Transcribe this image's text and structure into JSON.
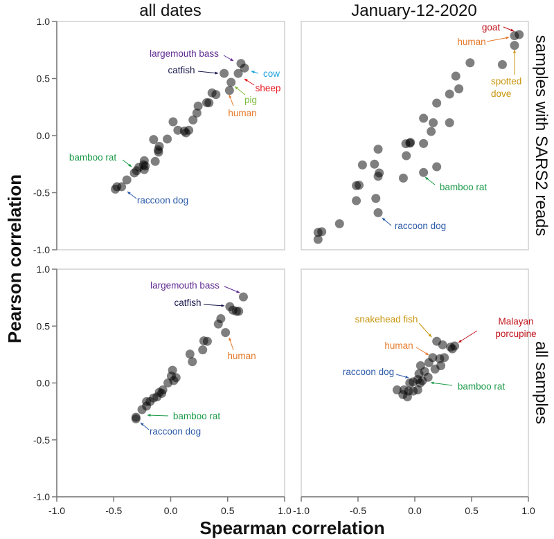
{
  "chart_data": [
    {
      "type": "scatter",
      "panel": "top-left",
      "title": "all dates",
      "row_label": "samples with SARS2 reads",
      "xlim": [
        -1,
        1
      ],
      "ylim": [
        -1,
        1
      ],
      "points": [
        [
          0.617,
          0.632
        ],
        [
          0.648,
          0.592
        ],
        [
          0.469,
          0.545
        ],
        [
          0.593,
          0.545
        ],
        [
          0.53,
          0.467
        ],
        [
          0.516,
          0.396
        ],
        [
          0.363,
          0.374
        ],
        [
          0.397,
          0.36
        ],
        [
          0.316,
          0.289
        ],
        [
          0.336,
          0.287
        ],
        [
          0.241,
          0.259
        ],
        [
          0.23,
          0.198
        ],
        [
          0.196,
          0.137
        ],
        [
          0.021,
          0.121
        ],
        [
          0.063,
          0.047
        ],
        [
          0.12,
          0.04
        ],
        [
          0.134,
          0.024
        ],
        [
          0.159,
          0.047
        ],
        [
          -0.03,
          -0.03
        ],
        [
          -0.15,
          -0.034
        ],
        [
          -0.1,
          -0.094
        ],
        [
          -0.11,
          -0.125
        ],
        [
          -0.106,
          -0.145
        ],
        [
          -0.136,
          -0.226
        ],
        [
          -0.232,
          -0.22
        ],
        [
          -0.238,
          -0.256
        ],
        [
          -0.224,
          -0.266
        ],
        [
          -0.232,
          -0.297
        ],
        [
          -0.279,
          -0.277
        ],
        [
          -0.299,
          -0.307
        ],
        [
          -0.319,
          -0.327
        ],
        [
          -0.385,
          -0.388
        ],
        [
          -0.431,
          -0.448
        ],
        [
          -0.472,
          -0.448
        ],
        [
          -0.486,
          -0.469
        ]
      ],
      "annotations": [
        {
          "text": "largemouth bass",
          "color": "#5e2a91"
        },
        {
          "text": "catfish",
          "color": "#17174a"
        },
        {
          "text": "cow",
          "color": "#1ea3dc"
        },
        {
          "text": "sheep",
          "color": "#e4141b"
        },
        {
          "text": "pig",
          "color": "#7dbb3c"
        },
        {
          "text": "human",
          "color": "#e57a2b"
        },
        {
          "text": "bamboo rat",
          "color": "#1a9a48"
        },
        {
          "text": "raccoon dog",
          "color": "#2b5aa8"
        }
      ]
    },
    {
      "type": "scatter",
      "panel": "top-right",
      "title": "January-12-2020",
      "row_label": "samples with SARS2 reads",
      "xlim": [
        -1,
        1
      ],
      "ylim": [
        -1,
        1
      ],
      "points": [
        [
          0.878,
          0.875
        ],
        [
          0.919,
          0.885
        ],
        [
          0.878,
          0.79
        ],
        [
          0.487,
          0.638
        ],
        [
          0.771,
          0.622
        ],
        [
          0.361,
          0.521
        ],
        [
          0.388,
          0.41
        ],
        [
          0.306,
          0.364
        ],
        [
          0.193,
          0.285
        ],
        [
          0.077,
          0.152
        ],
        [
          0.162,
          0.113
        ],
        [
          0.306,
          0.113
        ],
        [
          0.144,
          0.036
        ],
        [
          -0.079,
          -0.071
        ],
        [
          -0.038,
          -0.06
        ],
        [
          -0.044,
          -0.066
        ],
        [
          0.077,
          -0.069
        ],
        [
          -0.323,
          -0.119
        ],
        [
          -0.075,
          -0.176
        ],
        [
          -0.461,
          -0.257
        ],
        [
          -0.355,
          -0.25
        ],
        [
          -0.313,
          -0.327
        ],
        [
          -0.323,
          -0.356
        ],
        [
          -0.101,
          -0.372
        ],
        [
          0.077,
          -0.323
        ],
        [
          0.193,
          -0.273
        ],
        [
          -0.515,
          -0.438
        ],
        [
          -0.491,
          -0.434
        ],
        [
          -0.515,
          -0.57
        ],
        [
          -0.343,
          -0.55
        ],
        [
          -0.323,
          -0.675
        ],
        [
          -0.663,
          -0.772
        ],
        [
          -0.852,
          -0.848
        ],
        [
          -0.819,
          -0.842
        ],
        [
          -0.852,
          -0.909
        ]
      ],
      "annotations": [
        {
          "text": "goat",
          "color": "#c0141b"
        },
        {
          "text": "human",
          "color": "#e57a2b"
        },
        {
          "text": "spotted",
          "color": "#c8950c"
        },
        {
          "text": "dove",
          "color": "#c8950c"
        },
        {
          "text": "bamboo rat",
          "color": "#1a9a48"
        },
        {
          "text": "raccoon dog",
          "color": "#2b5aa8"
        }
      ]
    },
    {
      "type": "scatter",
      "panel": "bottom-left",
      "row_label": "all samples",
      "xlim": [
        -1,
        1
      ],
      "ylim": [
        -1,
        1
      ],
      "points": [
        [
          0.638,
          0.756
        ],
        [
          0.519,
          0.671
        ],
        [
          0.546,
          0.64
        ],
        [
          0.577,
          0.63
        ],
        [
          0.597,
          0.63
        ],
        [
          0.44,
          0.565
        ],
        [
          0.418,
          0.518
        ],
        [
          0.481,
          0.443
        ],
        [
          0.291,
          0.37
        ],
        [
          0.322,
          0.366
        ],
        [
          0.281,
          0.291
        ],
        [
          0.169,
          0.254
        ],
        [
          0.19,
          0.187
        ],
        [
          0.016,
          0.112
        ],
        [
          0.006,
          0.061
        ],
        [
          0.047,
          0.047
        ],
        [
          0.027,
          0.021
        ],
        [
          -0.024,
          0.0
        ],
        [
          -0.069,
          -0.061
        ],
        [
          -0.079,
          -0.091
        ],
        [
          -0.1,
          -0.082
        ],
        [
          -0.12,
          -0.122
        ],
        [
          -0.151,
          -0.132
        ],
        [
          -0.181,
          -0.163
        ],
        [
          -0.212,
          -0.163
        ],
        [
          -0.212,
          -0.203
        ],
        [
          -0.252,
          -0.234
        ],
        [
          -0.305,
          -0.301
        ],
        [
          -0.305,
          -0.315
        ]
      ],
      "annotations": [
        {
          "text": "largemouth bass",
          "color": "#5e2a91"
        },
        {
          "text": "catfish",
          "color": "#17174a"
        },
        {
          "text": "human",
          "color": "#e57a2b"
        },
        {
          "text": "bamboo rat",
          "color": "#1a9a48"
        },
        {
          "text": "raccoon dog",
          "color": "#2b5aa8"
        }
      ]
    },
    {
      "type": "scatter",
      "panel": "bottom-right",
      "row_label": "all samples",
      "xlim": [
        -1,
        1
      ],
      "ylim": [
        -1,
        1
      ],
      "points": [
        [
          0.193,
          0.366
        ],
        [
          0.245,
          0.335
        ],
        [
          0.315,
          0.315
        ],
        [
          0.351,
          0.325
        ],
        [
          0.331,
          0.3
        ],
        [
          0.158,
          0.223
        ],
        [
          0.219,
          0.213
        ],
        [
          0.26,
          0.223
        ],
        [
          0.124,
          0.179
        ],
        [
          0.229,
          0.152
        ],
        [
          0.178,
          0.122
        ],
        [
          0.051,
          0.152
        ],
        [
          0.037,
          0.081
        ],
        [
          0.087,
          0.101
        ],
        [
          0.117,
          0.05
        ],
        [
          0.067,
          0.02
        ],
        [
          0.026,
          0.03
        ],
        [
          -0.014,
          0.01
        ],
        [
          -0.044,
          0.0
        ],
        [
          0.047,
          0.0
        ],
        [
          -0.156,
          -0.061
        ],
        [
          -0.095,
          -0.061
        ],
        [
          -0.055,
          -0.071
        ],
        [
          -0.014,
          -0.071
        ],
        [
          0.026,
          -0.061
        ],
        [
          -0.065,
          -0.122
        ],
        [
          -0.105,
          -0.102
        ]
      ],
      "annotations": [
        {
          "text": "snakehead fish",
          "color": "#c8950c"
        },
        {
          "text": "Malayan",
          "color": "#c0141b"
        },
        {
          "text": "porcupine",
          "color": "#c0141b"
        },
        {
          "text": "human",
          "color": "#e57a2b"
        },
        {
          "text": "raccoon dog",
          "color": "#2b5aa8"
        },
        {
          "text": "bamboo rat",
          "color": "#1a9a48"
        }
      ]
    }
  ],
  "axes": {
    "xlabel": "Spearman correlation",
    "ylabel": "Pearson correlation",
    "ticks": [
      "-1.0",
      "-0.5",
      "0.0",
      "0.5",
      "1.0"
    ],
    "tick_values": [
      -1,
      -0.5,
      0,
      0.5,
      1
    ],
    "point_color": "#000000",
    "point_opacity": 0.5
  }
}
